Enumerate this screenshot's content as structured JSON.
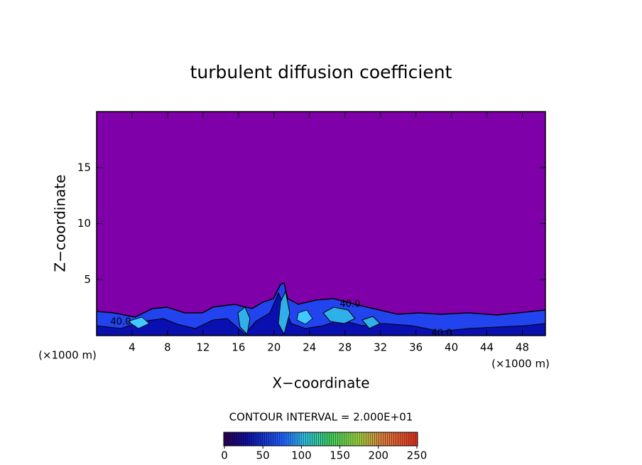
{
  "chart_data": {
    "type": "contour",
    "title": "turbulent diffusion coefficient",
    "xlabel": "X−coordinate",
    "ylabel": "Z−coordinate",
    "x_unit_label": "(×1000 m)",
    "xlim": [
      0,
      50.6
    ],
    "xticks": [
      4,
      8,
      12,
      16,
      20,
      24,
      28,
      32,
      36,
      40,
      44,
      48
    ],
    "ylim": [
      0,
      20
    ],
    "yticks": [
      5,
      10,
      15
    ],
    "contour_labels": [
      "40.0",
      "40.0",
      "40.0"
    ],
    "contour_interval_label": "CONTOUR INTERVAL = 2.000E+01",
    "colorbar": {
      "range": [
        0,
        250
      ],
      "ticks": [
        0,
        50,
        100,
        150,
        200,
        250
      ]
    }
  }
}
